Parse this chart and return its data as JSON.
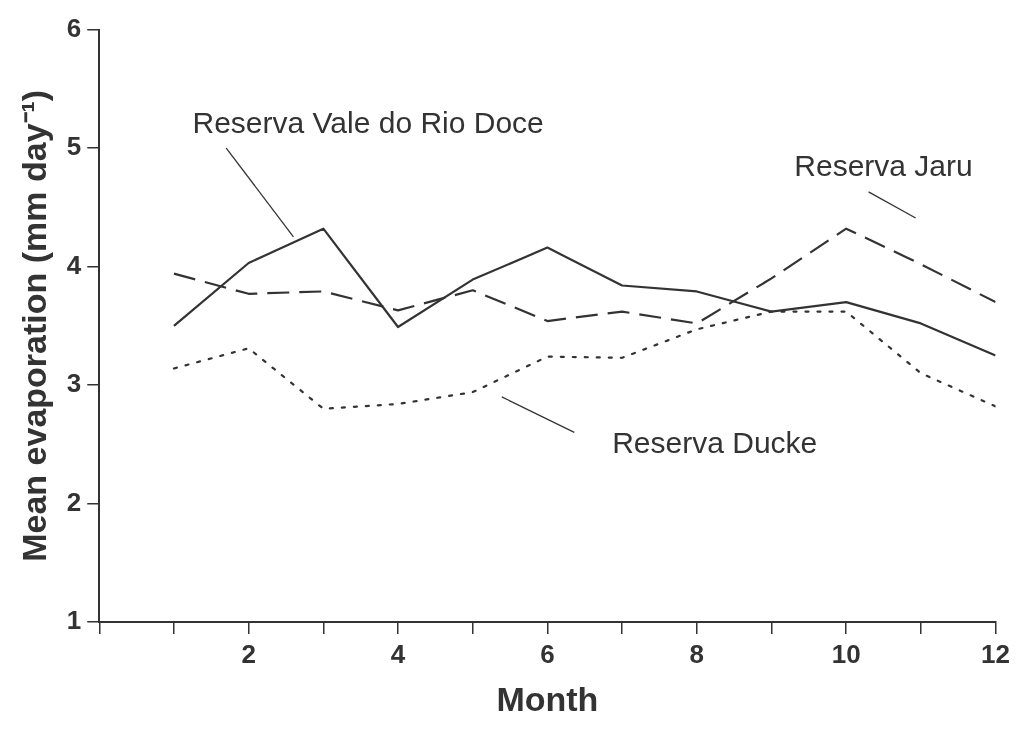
{
  "chart_data": {
    "type": "line",
    "xlabel": "Month",
    "ylabel": "Mean evaporation (mm day⁻¹)",
    "x": [
      1,
      2,
      3,
      4,
      5,
      6,
      7,
      8,
      9,
      10,
      11,
      12
    ],
    "series": [
      {
        "name": "Reserva Vale do Rio Doce",
        "color": "#333333",
        "line_style": "solid",
        "values": [
          3.5,
          4.03,
          4.32,
          3.49,
          3.89,
          4.16,
          3.84,
          3.79,
          3.62,
          3.7,
          3.52,
          3.25
        ]
      },
      {
        "name": "Reserva Jaru",
        "color": "#333333",
        "line_style": "dashed",
        "values": [
          3.94,
          3.77,
          3.79,
          3.63,
          3.8,
          3.54,
          3.62,
          3.52,
          3.9,
          4.32,
          4.02,
          3.7
        ]
      },
      {
        "name": "Reserva Ducke",
        "color": "#333333",
        "line_style": "dotted",
        "values": [
          3.14,
          3.31,
          2.8,
          2.84,
          2.94,
          3.24,
          3.23,
          3.47,
          3.62,
          3.62,
          3.1,
          2.82
        ]
      }
    ],
    "xlim": [
      0,
      12
    ],
    "xticks": [
      {
        "value": 0,
        "label": null
      },
      {
        "value": 1,
        "label": null
      },
      2,
      {
        "value": 3,
        "label": null
      },
      4,
      {
        "value": 5,
        "label": null
      },
      6,
      {
        "value": 7,
        "label": null
      },
      8,
      {
        "value": 9,
        "label": null
      },
      10,
      {
        "value": 11,
        "label": null
      },
      12
    ],
    "ylim": [
      1,
      6
    ],
    "yticks": [
      1,
      2,
      3,
      4,
      5,
      6
    ],
    "grid": false,
    "legend": false,
    "marker": "none"
  }
}
